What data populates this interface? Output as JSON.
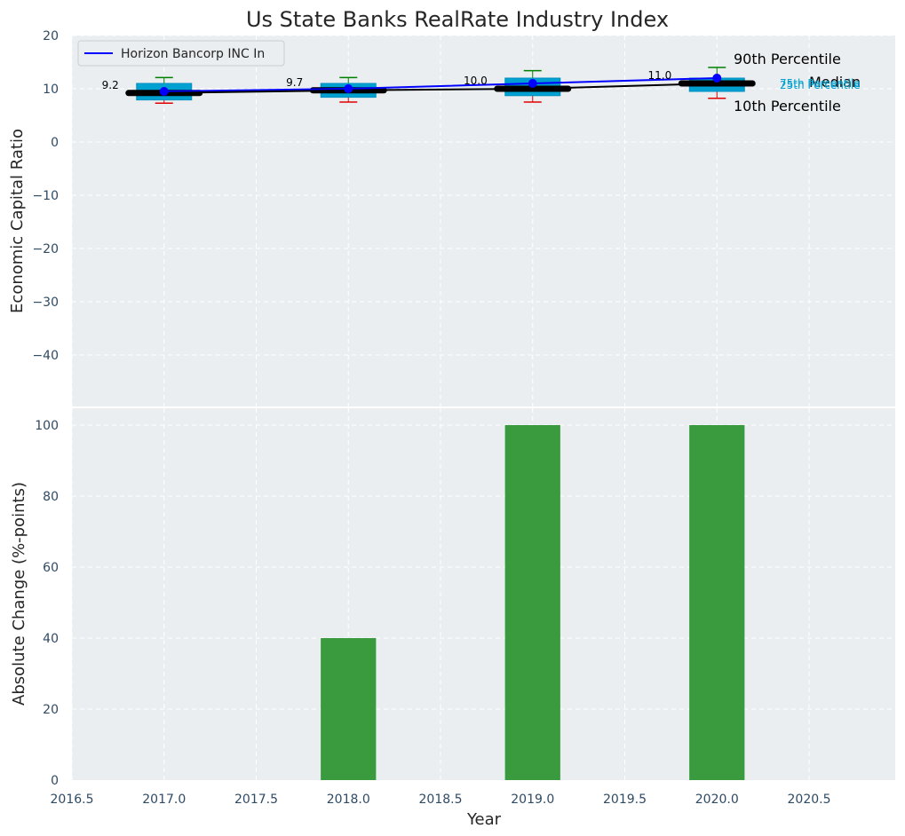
{
  "chart_data": [
    {
      "type": "box",
      "title": "Us State Banks RealRate Industry Index",
      "ylabel": "Economic Capital Ratio",
      "xlabel": "",
      "xlim": [
        2016.5,
        2021.0
      ],
      "ylim": [
        -50,
        20
      ],
      "yticks": [
        20,
        10,
        0,
        -10,
        -20,
        -30,
        -40
      ],
      "years": [
        2017,
        2018,
        2019,
        2020
      ],
      "boxes": [
        {
          "x": 2017,
          "p10": 7.3,
          "q1": 7.9,
          "median": 9.2,
          "q3": 11.0,
          "p90": 12.1
        },
        {
          "x": 2018,
          "p10": 7.5,
          "q1": 8.4,
          "median": 9.7,
          "q3": 11.0,
          "p90": 12.1
        },
        {
          "x": 2019,
          "p10": 7.5,
          "q1": 8.7,
          "median": 10.0,
          "q3": 12.0,
          "p90": 13.4
        },
        {
          "x": 2020,
          "p10": 8.2,
          "q1": 9.5,
          "median": 11.0,
          "q3": 12.0,
          "p90": 14.0
        }
      ],
      "median_labels": [
        "9.2",
        "9.7",
        "10.0",
        "11.0"
      ],
      "series": [
        {
          "name": "Horizon Bancorp INC In",
          "color": "#0000ff",
          "x": [
            2017,
            2018,
            2019,
            2020
          ],
          "values": [
            9.5,
            10.0,
            11.0,
            12.0
          ]
        },
        {
          "name": "Median",
          "color": "#000000",
          "x": [
            2017,
            2018,
            2019,
            2020
          ],
          "values": [
            9.2,
            9.7,
            10.0,
            11.0
          ]
        }
      ],
      "annotations": {
        "p90": "90th Percentile",
        "median": "Median",
        "p10": "10th Percentile",
        "q3": "75th Percentile",
        "q1": "25th Percentile"
      },
      "legend": {
        "position": "top-left",
        "entries": [
          "Horizon Bancorp INC In"
        ]
      },
      "grid": true
    },
    {
      "type": "bar",
      "ylabel": "Absolute Change (%-points)",
      "xlabel": "Year",
      "xlim": [
        2016.5,
        2021.0
      ],
      "xticks": [
        "2016.5",
        "2017.0",
        "2017.5",
        "2018.0",
        "2018.5",
        "2019.0",
        "2019.5",
        "2020.0",
        "2020.5"
      ],
      "ylim": [
        0,
        105
      ],
      "yticks": [
        0,
        20,
        40,
        60,
        80,
        100
      ],
      "x": [
        2017,
        2018,
        2019,
        2020
      ],
      "values": [
        0,
        40,
        100,
        100
      ],
      "bar_width": 0.3,
      "color": "#3a9b3e",
      "grid": true
    }
  ],
  "colors": {
    "plot_bg": "#eaeef0",
    "box_fill": "#00a0d0",
    "box_edge": "#0090c0",
    "whisker_high": "#008000",
    "whisker_low": "#e00000",
    "line": "#0000ff",
    "median": "#000000",
    "bar": "#3a9b3e",
    "pct_label": "#00a0d0"
  }
}
